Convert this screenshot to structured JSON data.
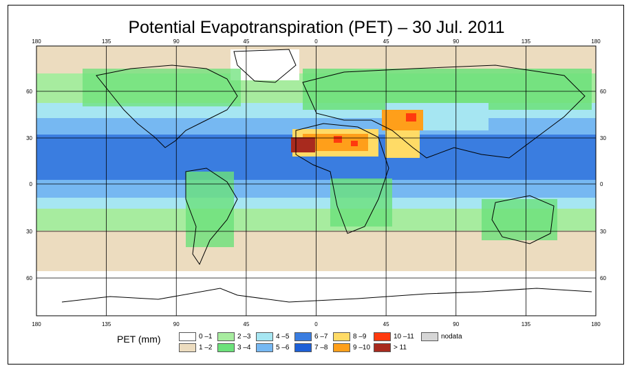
{
  "title": "Potential Evapotranspiration (PET) – 30 Jul. 2011",
  "axes": {
    "lon_labels": [
      "180",
      "135",
      "90",
      "45",
      "0",
      "45",
      "90",
      "135",
      "180"
    ],
    "lat_labels": [
      "60",
      "30",
      "0",
      "30",
      "60"
    ]
  },
  "legend": {
    "title": "PET (mm)",
    "items": [
      {
        "label": "0 –1",
        "color": "#ffffff"
      },
      {
        "label": "1 –2",
        "color": "#ecdcbf"
      },
      {
        "label": "2 –3",
        "color": "#a7ec9f"
      },
      {
        "label": "3 –4",
        "color": "#6ce17a"
      },
      {
        "label": "4 –5",
        "color": "#a6e6f2"
      },
      {
        "label": "5 –6",
        "color": "#76b8f2"
      },
      {
        "label": "6 –7",
        "color": "#3a7de0"
      },
      {
        "label": "7 –8",
        "color": "#1d5fd6"
      },
      {
        "label": "8 –9",
        "color": "#ffdb66"
      },
      {
        "label": "9 –10",
        "color": "#ff9f1a"
      },
      {
        "label": "10 –11",
        "color": "#ff3a0e"
      },
      {
        "label": "> 11",
        "color": "#a82a1e"
      },
      {
        "label": "nodata",
        "color": "#d6d6d6"
      }
    ]
  },
  "colors": {
    "ocean_deep": "#3a7de0",
    "ocean_mid": "#76b8f2",
    "ocean_light": "#a6e6f2",
    "green_light": "#a7ec9f",
    "green": "#6ce17a",
    "tan": "#ecdcbf",
    "white": "#ffffff",
    "yellow": "#ffdb66",
    "orange": "#ff9f1a",
    "red": "#ff3a0e",
    "darkred": "#a82a1e",
    "coast": "#000000"
  }
}
